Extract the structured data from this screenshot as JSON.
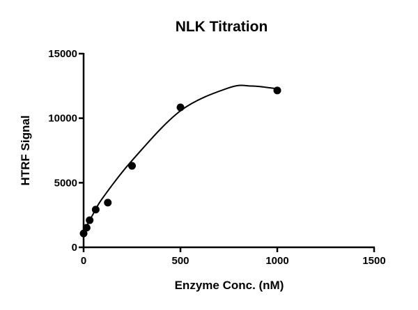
{
  "chart_data": {
    "type": "scatter",
    "title": "NLK Titration",
    "xlabel": "Enzyme Conc. (nM)",
    "ylabel": "HTRF Signal",
    "xlim": [
      0,
      1500
    ],
    "ylim": [
      0,
      15000
    ],
    "xticks": [
      "0",
      "500",
      "1000",
      "1500"
    ],
    "yticks": [
      "0",
      "5000",
      "10000",
      "15000"
    ],
    "grid": false,
    "legend": "none",
    "color": "#000000",
    "points": [
      {
        "x": 0,
        "y": 1075
      },
      {
        "x": 15.6,
        "y": 1520
      },
      {
        "x": 31.25,
        "y": 2100
      },
      {
        "x": 62.5,
        "y": 2920
      },
      {
        "x": 125,
        "y": 3460
      },
      {
        "x": 250,
        "y": 6310
      },
      {
        "x": 500,
        "y": 10840
      },
      {
        "x": 1000,
        "y": 12150
      }
    ],
    "fit_curve": [
      {
        "x": 0,
        "y": 1200
      },
      {
        "x": 50,
        "y": 2600
      },
      {
        "x": 100,
        "y": 3850
      },
      {
        "x": 250,
        "y": 6720
      },
      {
        "x": 500,
        "y": 10570
      },
      {
        "x": 750,
        "y": 12350
      },
      {
        "x": 870,
        "y": 12490
      },
      {
        "x": 1000,
        "y": 12280
      }
    ]
  }
}
